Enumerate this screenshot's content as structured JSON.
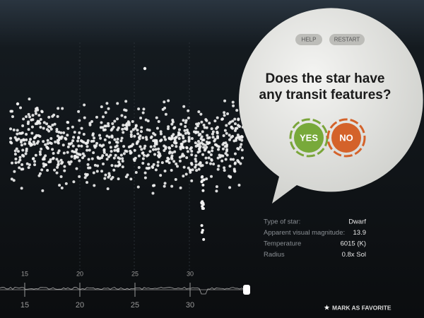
{
  "toolbar": {
    "help": "HELP",
    "restart": "RESTART"
  },
  "question": "Does the star have any transit features?",
  "answers": {
    "yes": "YES",
    "no": "NO"
  },
  "star_info": [
    {
      "label": "Type of star:",
      "value": "Dwarf"
    },
    {
      "label": "Apparent visual magnitude:",
      "value": "13.9"
    },
    {
      "label": "Temperature",
      "value": "6015 (K)"
    },
    {
      "label": "Radius",
      "value": "0.8x Sol"
    }
  ],
  "timeline": {
    "ticks": [
      15,
      20,
      25,
      30
    ]
  },
  "favorite": "MARK AS FAVORITE"
}
